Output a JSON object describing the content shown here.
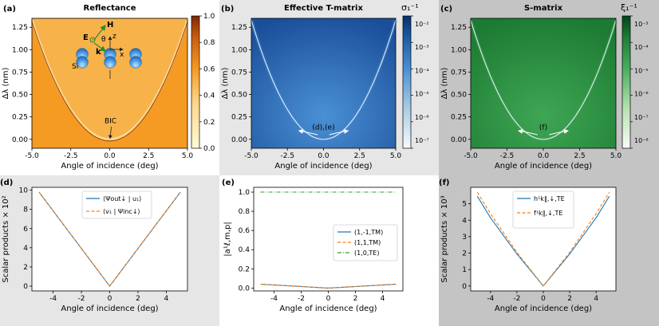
{
  "colors": {
    "panel_bg_a": "#ffffff",
    "panel_bg_b": "#e6e6e6",
    "panel_bg_c": "#c4c4c4",
    "orange": "#f59a23",
    "orange_edge": "#fbd98e",
    "blue_dark": "#1b4f9a",
    "blue_light": "#4a90d4",
    "green_dark": "#1c7a32",
    "green_light": "#3fa654",
    "line_blue": "#1f77b4",
    "line_orange": "#ff7f0e",
    "line_green": "#2ca02c"
  },
  "panels": [
    {
      "id": "a",
      "label": "(a)",
      "title": "Reflectance",
      "xlabel": "Angle of incidence (deg)",
      "ylabel": "Δλ (nm)",
      "xticks": [
        "-5.0",
        "-2.5",
        "0.0",
        "2.5",
        "5.0"
      ],
      "yticks": [
        "0.00",
        "0.25",
        "0.50",
        "0.75",
        "1.00",
        "1.25"
      ],
      "colorbar": {
        "label": "",
        "ticks": [
          "0.0",
          "0.2",
          "0.4",
          "0.6",
          "0.8",
          "1.0"
        ]
      },
      "annotations": {
        "bic": "BIC",
        "si": "Si",
        "h": "H",
        "e": "E",
        "k": "k",
        "theta": "θ",
        "z": "z",
        "x": "x"
      }
    },
    {
      "id": "b",
      "label": "(b)",
      "title": "Effective T-matrix",
      "xlabel": "Angle of incidence (deg)",
      "ylabel": "Δλ (nm)",
      "xticks": [
        "-5.0",
        "-2.5",
        "0.0",
        "2.5",
        "5.0"
      ],
      "yticks": [
        "0.00",
        "0.25",
        "0.50",
        "0.75",
        "1.00",
        "1.25"
      ],
      "colorbar": {
        "label": "σ₁⁻¹",
        "ticks": [
          "10⁻²",
          "10⁻³",
          "10⁻⁴",
          "10⁻⁵",
          "10⁻⁶",
          "10⁻⁷"
        ]
      },
      "annotations": {
        "arrow_label": "(d),(e)"
      }
    },
    {
      "id": "c",
      "label": "(c)",
      "title": "S-matrix",
      "xlabel": "Angle of incidence (deg)",
      "ylabel": "Δλ (nm)",
      "xticks": [
        "-5.0",
        "-2.5",
        "0.0",
        "2.5",
        "5.0"
      ],
      "yticks": [
        "0.00",
        "0.25",
        "0.50",
        "0.75",
        "1.00",
        "1.25"
      ],
      "colorbar": {
        "label": "ξ₁⁻¹",
        "ticks": [
          "10⁻³",
          "10⁻⁴",
          "10⁻⁵",
          "10⁻⁶",
          "10⁻⁷",
          "10⁻⁸"
        ]
      },
      "annotations": {
        "arrow_label": "(f)"
      }
    },
    {
      "id": "d",
      "label": "(d)",
      "xlabel": "Angle of incidence (deg)",
      "ylabel": "Scalar products × 10²",
      "xticks": [
        "-4",
        "-2",
        "0",
        "2",
        "4"
      ],
      "yticks": [
        "0",
        "2",
        "4",
        "6",
        "8",
        "10"
      ],
      "legend": [
        "⟨Ψout↓ | u₁⟩",
        "⟨v₁ | Ψinc↓⟩"
      ]
    },
    {
      "id": "e",
      "label": "(e)",
      "xlabel": "Angle of incidence (deg)",
      "ylabel": "|a¹ℓ,m,p|",
      "xticks": [
        "-4",
        "-2",
        "0",
        "2",
        "4"
      ],
      "yticks": [
        "0.0",
        "0.2",
        "0.4",
        "0.6",
        "0.8",
        "1.0"
      ],
      "legend": [
        "(1,-1,TM)",
        "(1,1,TM)",
        "(1,0,TE)"
      ]
    },
    {
      "id": "f",
      "label": "(f)",
      "xlabel": "Angle of incidence (deg)",
      "ylabel": "Scalar products × 10³",
      "xticks": [
        "-4",
        "-2",
        "0",
        "2",
        "4"
      ],
      "yticks": [
        "0",
        "1",
        "2",
        "3",
        "4",
        "5"
      ],
      "legend": [
        "h¹k∥,↓,TE",
        "f¹k∥,↓,TE"
      ]
    }
  ],
  "chart_data": [
    {
      "type": "heatmap",
      "panel": "a",
      "title": "Reflectance",
      "xlabel": "Angle of incidence (deg)",
      "ylabel": "Δλ (nm)",
      "xlim": [
        -5,
        5
      ],
      "ylim": [
        -0.1,
        1.35
      ],
      "resonance_curve": {
        "x": [
          -5,
          -2.5,
          0,
          2.5,
          5
        ],
        "y": [
          1.33,
          0.33,
          0.0,
          0.33,
          1.33
        ]
      },
      "colorbar_range": [
        0,
        1
      ],
      "bic_point": [
        0,
        0
      ]
    },
    {
      "type": "heatmap",
      "panel": "b",
      "title": "Effective T-matrix",
      "xlabel": "Angle of incidence (deg)",
      "ylabel": "Δλ (nm)",
      "xlim": [
        -5,
        5
      ],
      "ylim": [
        -0.1,
        1.35
      ],
      "resonance_curve": {
        "x": [
          -5,
          -2.5,
          0,
          2.5,
          5
        ],
        "y": [
          1.33,
          0.33,
          0.0,
          0.33,
          1.33
        ]
      },
      "colorbar_range_log10": [
        -7.5,
        -1.8
      ],
      "colorbar_label": "σ₁⁻¹"
    },
    {
      "type": "heatmap",
      "panel": "c",
      "title": "S-matrix",
      "xlabel": "Angle of incidence (deg)",
      "ylabel": "Δλ (nm)",
      "xlim": [
        -5,
        5
      ],
      "ylim": [
        -0.1,
        1.35
      ],
      "resonance_curve": {
        "x": [
          -5,
          -2.5,
          0,
          2.5,
          5
        ],
        "y": [
          1.33,
          0.33,
          0.0,
          0.33,
          1.33
        ]
      },
      "colorbar_range_log10": [
        -8.5,
        -2.6
      ],
      "colorbar_label": "ξ₁⁻¹"
    },
    {
      "type": "line",
      "panel": "d",
      "xlabel": "Angle of incidence (deg)",
      "ylabel": "Scalar products × 10²",
      "xlim": [
        -5.5,
        5.5
      ],
      "ylim": [
        -0.5,
        10.3
      ],
      "series": [
        {
          "name": "⟨Ψout↓ | u₁⟩",
          "style": "solid",
          "color": "#1f77b4",
          "x": [
            -5,
            0,
            5
          ],
          "y": [
            9.8,
            0,
            9.8
          ]
        },
        {
          "name": "⟨v₁ | Ψinc↓⟩",
          "style": "dashed",
          "color": "#ff7f0e",
          "x": [
            -5,
            0,
            5
          ],
          "y": [
            9.8,
            0,
            9.8
          ]
        }
      ]
    },
    {
      "type": "line",
      "panel": "e",
      "xlabel": "Angle of incidence (deg)",
      "ylabel": "|a¹ℓ,m,p|",
      "xlim": [
        -5.5,
        5.5
      ],
      "ylim": [
        -0.03,
        1.05
      ],
      "series": [
        {
          "name": "(1,-1,TM)",
          "style": "solid",
          "color": "#1f77b4",
          "x": [
            -5,
            0,
            5
          ],
          "y": [
            0.04,
            0.0,
            0.04
          ]
        },
        {
          "name": "(1,1,TM)",
          "style": "dashed",
          "color": "#ff7f0e",
          "x": [
            -5,
            0,
            5
          ],
          "y": [
            0.04,
            0.0,
            0.04
          ]
        },
        {
          "name": "(1,0,TE)",
          "style": "dashdot",
          "color": "#2ca02c",
          "x": [
            -5,
            0,
            5
          ],
          "y": [
            1.0,
            1.0,
            1.0
          ]
        }
      ]
    },
    {
      "type": "line",
      "panel": "f",
      "xlabel": "Angle of incidence (deg)",
      "ylabel": "Scalar products × 10³",
      "xlim": [
        -5.5,
        5.5
      ],
      "ylim": [
        -0.3,
        6.0
      ],
      "series": [
        {
          "name": "h¹k∥,↓,TE",
          "style": "solid",
          "color": "#1f77b4",
          "x": [
            -5,
            -4,
            -2,
            0,
            2,
            4,
            5
          ],
          "y": [
            5.45,
            4.15,
            1.95,
            0,
            1.95,
            4.15,
            5.45
          ]
        },
        {
          "name": "f¹k∥,↓,TE",
          "style": "dashed",
          "color": "#ff7f0e",
          "x": [
            -5,
            -4,
            -2,
            0,
            2,
            4,
            5
          ],
          "y": [
            5.7,
            4.4,
            2.05,
            0,
            2.05,
            4.4,
            5.7
          ]
        }
      ]
    }
  ]
}
